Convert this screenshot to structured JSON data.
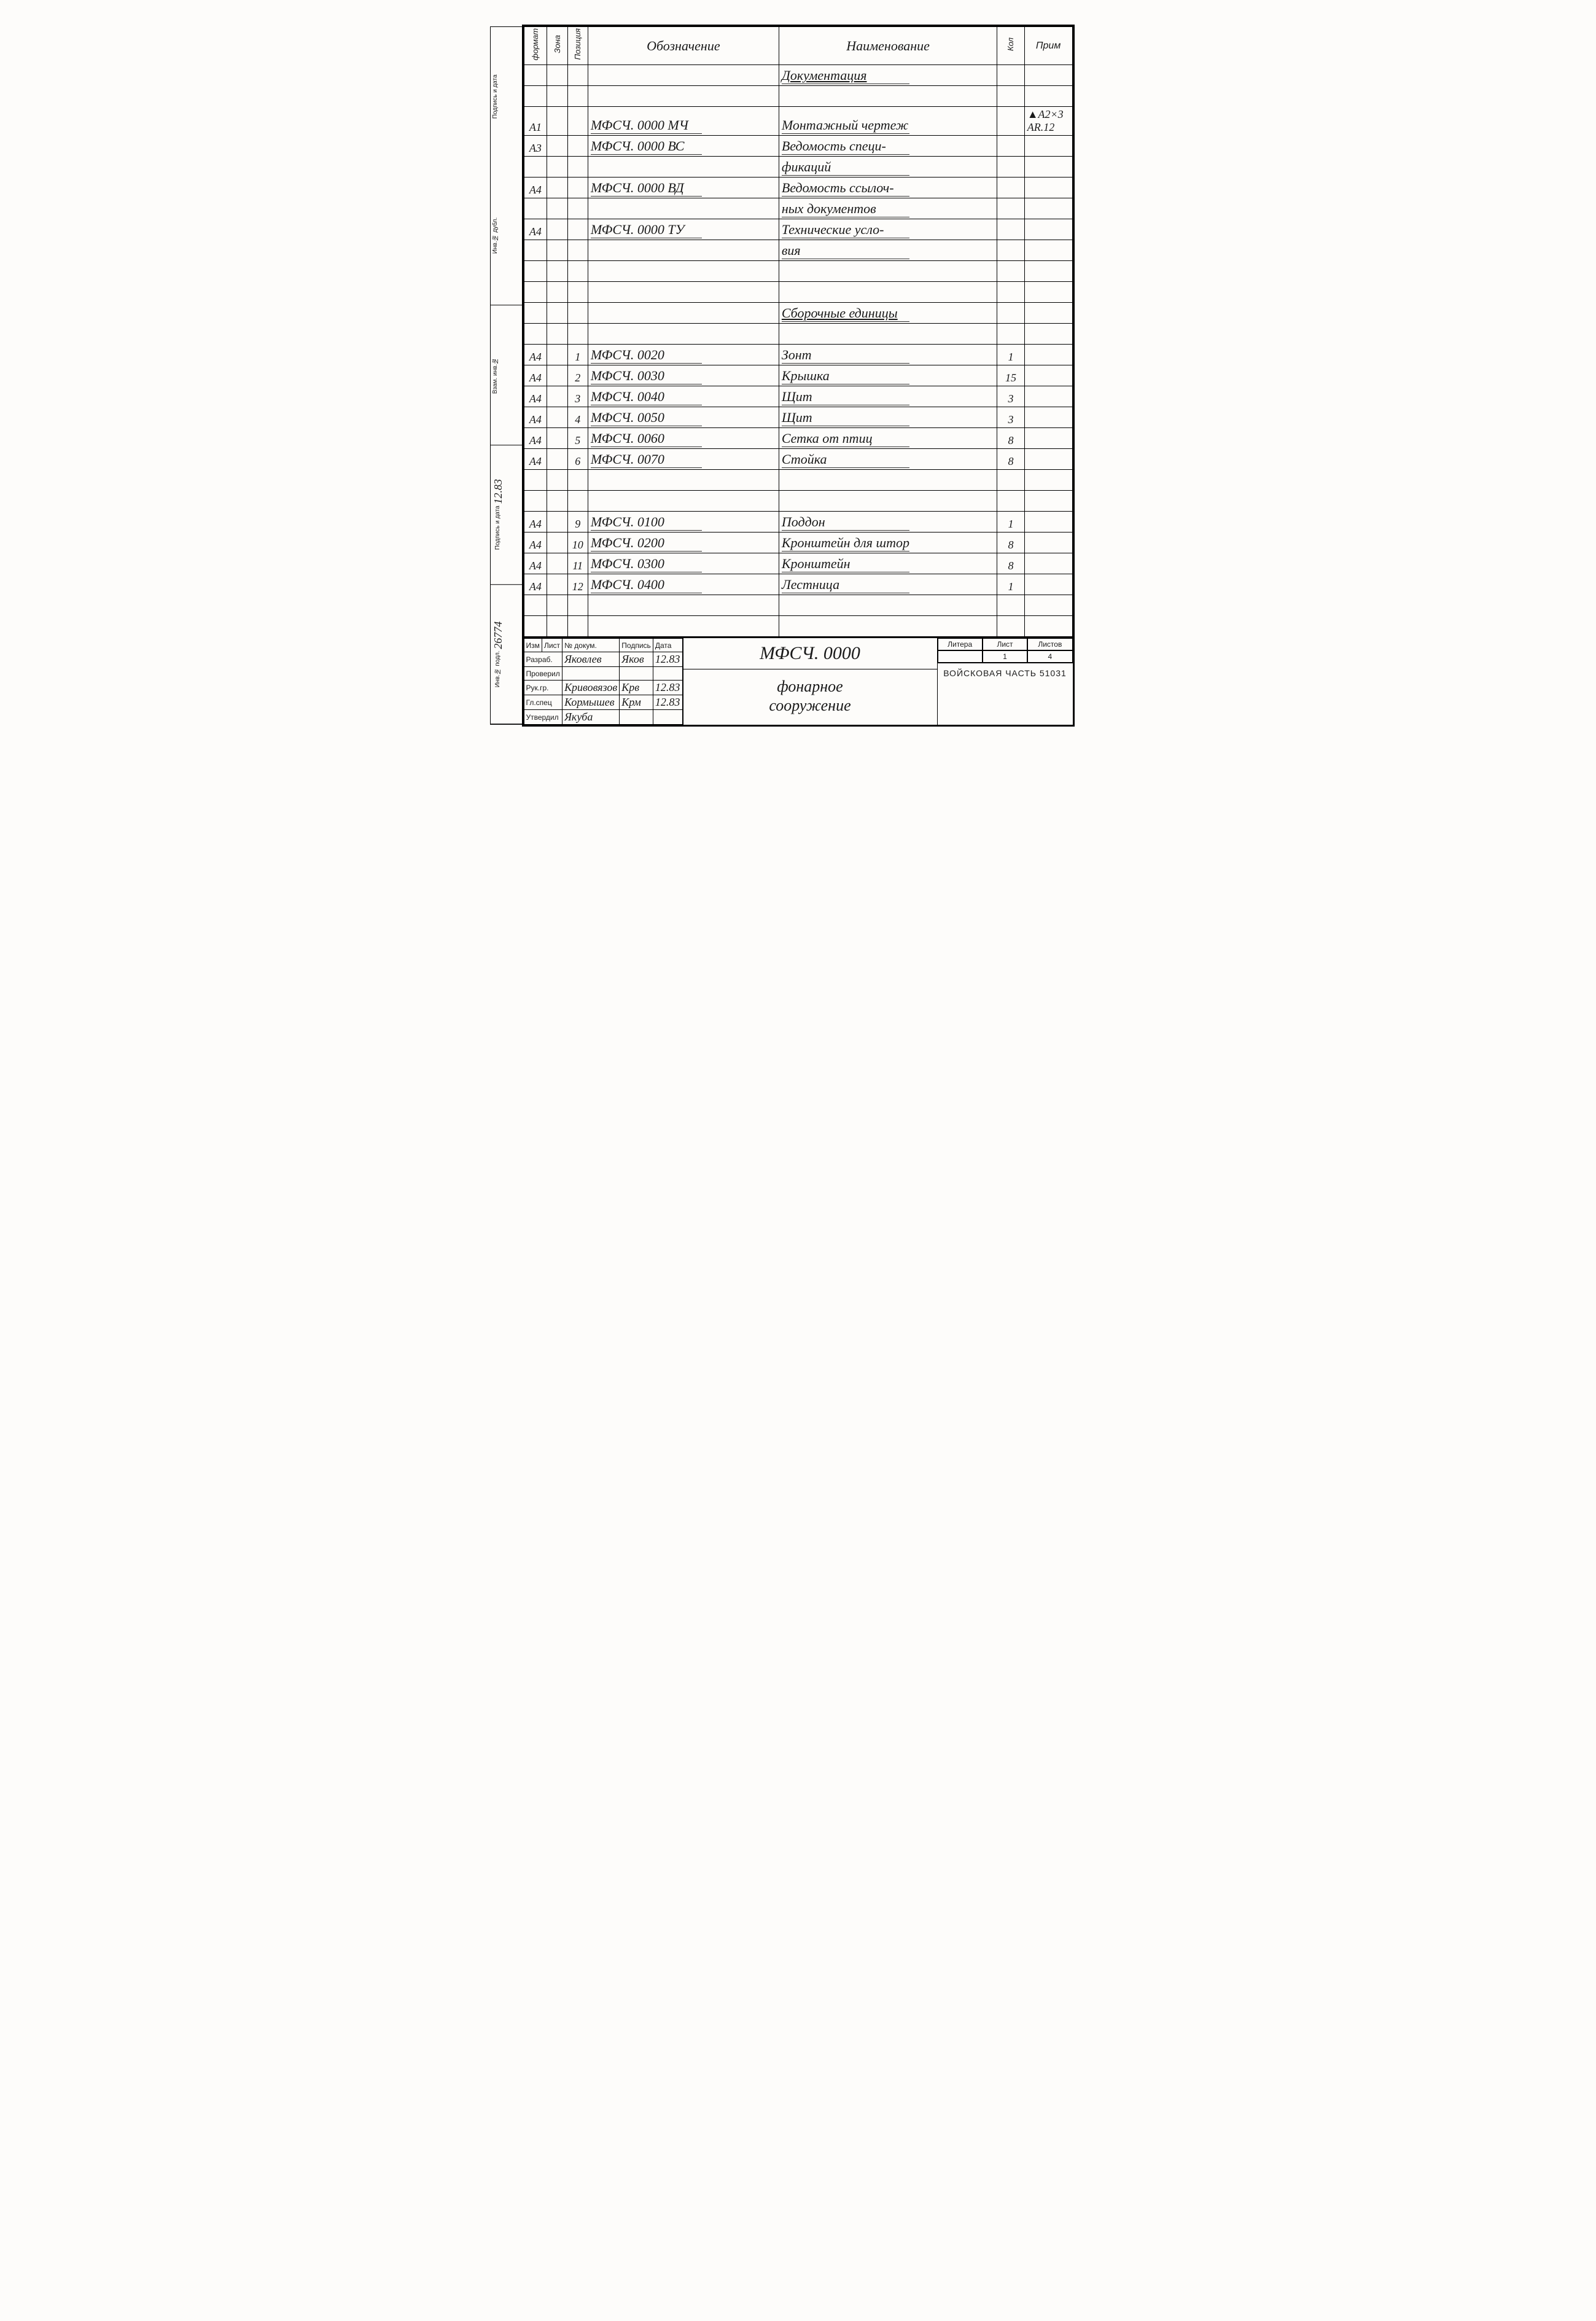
{
  "headers": {
    "format": "формат",
    "zone": "Зона",
    "pos": "Позиция",
    "desig": "Обозначение",
    "name": "Наименование",
    "qty": "Кол",
    "note": "Прим"
  },
  "rows": [
    {
      "f": "",
      "z": "",
      "p": "",
      "d": "",
      "n": "Документация",
      "q": "",
      "note": "",
      "section": true
    },
    {
      "f": "",
      "z": "",
      "p": "",
      "d": "",
      "n": "",
      "q": "",
      "note": ""
    },
    {
      "f": "А1",
      "z": "",
      "p": "",
      "d": "МФСЧ. 0000 МЧ",
      "n": "Монтажный чертеж",
      "q": "",
      "note": "▲А2×3 АR.12"
    },
    {
      "f": "А3",
      "z": "",
      "p": "",
      "d": "МФСЧ. 0000 ВС",
      "n": "Ведомость специ-",
      "q": "",
      "note": ""
    },
    {
      "f": "",
      "z": "",
      "p": "",
      "d": "",
      "n": "фикаций",
      "q": "",
      "note": ""
    },
    {
      "f": "А4",
      "z": "",
      "p": "",
      "d": "МФСЧ. 0000 ВД",
      "n": "Ведомость ссылоч-",
      "q": "",
      "note": ""
    },
    {
      "f": "",
      "z": "",
      "p": "",
      "d": "",
      "n": "ных документов",
      "q": "",
      "note": ""
    },
    {
      "f": "А4",
      "z": "",
      "p": "",
      "d": "МФСЧ. 0000 ТУ",
      "n": "Технические усло-",
      "q": "",
      "note": ""
    },
    {
      "f": "",
      "z": "",
      "p": "",
      "d": "",
      "n": "вия",
      "q": "",
      "note": ""
    },
    {
      "f": "",
      "z": "",
      "p": "",
      "d": "",
      "n": "",
      "q": "",
      "note": ""
    },
    {
      "f": "",
      "z": "",
      "p": "",
      "d": "",
      "n": "",
      "q": "",
      "note": ""
    },
    {
      "f": "",
      "z": "",
      "p": "",
      "d": "",
      "n": "Сборочные единицы",
      "q": "",
      "note": "",
      "section": true
    },
    {
      "f": "",
      "z": "",
      "p": "",
      "d": "",
      "n": "",
      "q": "",
      "note": ""
    },
    {
      "f": "А4",
      "z": "",
      "p": "1",
      "d": "МФСЧ. 0020",
      "n": "Зонт",
      "q": "1",
      "note": ""
    },
    {
      "f": "А4",
      "z": "",
      "p": "2",
      "d": "МФСЧ. 0030",
      "n": "Крышка",
      "q": "15",
      "note": ""
    },
    {
      "f": "А4",
      "z": "",
      "p": "3",
      "d": "МФСЧ. 0040",
      "n": "Щит",
      "q": "3",
      "note": ""
    },
    {
      "f": "А4",
      "z": "",
      "p": "4",
      "d": "МФСЧ. 0050",
      "n": "Щит",
      "q": "3",
      "note": ""
    },
    {
      "f": "А4",
      "z": "",
      "p": "5",
      "d": "МФСЧ. 0060",
      "n": "Сетка от птиц",
      "q": "8",
      "note": ""
    },
    {
      "f": "А4",
      "z": "",
      "p": "6",
      "d": "МФСЧ. 0070",
      "n": "Стойка",
      "q": "8",
      "note": ""
    },
    {
      "f": "",
      "z": "",
      "p": "",
      "d": "",
      "n": "",
      "q": "",
      "note": ""
    },
    {
      "f": "",
      "z": "",
      "p": "",
      "d": "",
      "n": "",
      "q": "",
      "note": ""
    },
    {
      "f": "А4",
      "z": "",
      "p": "9",
      "d": "МФСЧ. 0100",
      "n": "Поддон",
      "q": "1",
      "note": ""
    },
    {
      "f": "А4",
      "z": "",
      "p": "10",
      "d": "МФСЧ. 0200",
      "n": "Кронштейн для штор",
      "q": "8",
      "note": ""
    },
    {
      "f": "А4",
      "z": "",
      "p": "11",
      "d": "МФСЧ. 0300",
      "n": "Кронштейн",
      "q": "8",
      "note": ""
    },
    {
      "f": "А4",
      "z": "",
      "p": "12",
      "d": "МФСЧ. 0400",
      "n": "Лестница",
      "q": "1",
      "note": ""
    },
    {
      "f": "",
      "z": "",
      "p": "",
      "d": "",
      "n": "",
      "q": "",
      "note": ""
    },
    {
      "f": "",
      "z": "",
      "p": "",
      "d": "",
      "n": "",
      "q": "",
      "note": ""
    }
  ],
  "title_block": {
    "doc_number": "МФСЧ. 0000",
    "title_line1": "фонарное",
    "title_line2": "сооружение",
    "left_head": [
      "Изм",
      "Лист",
      "№ докум.",
      "Подпись",
      "Дата"
    ],
    "sign_rows": [
      {
        "role": "Разраб.",
        "name": "Яковлев",
        "sig": "Яков",
        "date": "12.83"
      },
      {
        "role": "Проверил",
        "name": "",
        "sig": "",
        "date": ""
      },
      {
        "role": "Рук.гр.",
        "name": "Кривовязов",
        "sig": "Крв",
        "date": "12.83"
      },
      {
        "role": "Гл.спец",
        "name": "Кормышев",
        "sig": "Крм",
        "date": "12.83"
      },
      {
        "role": "Утвердил",
        "name": "Якуба",
        "sig": "",
        "date": ""
      }
    ],
    "right_head": [
      "Литера",
      "Лист",
      "Листов"
    ],
    "right_vals": [
      "",
      "1",
      "4"
    ],
    "org": "ВОЙСКОВАЯ ЧАСТЬ 51031"
  },
  "binding_labels": [
    "Инв.№ подл.",
    "Подпись и дата",
    "Взам. инв.№",
    "Инв.№ дубл.",
    "Подпись и дата"
  ],
  "binding_vals": [
    "26774",
    "12.83",
    "",
    "",
    ""
  ]
}
